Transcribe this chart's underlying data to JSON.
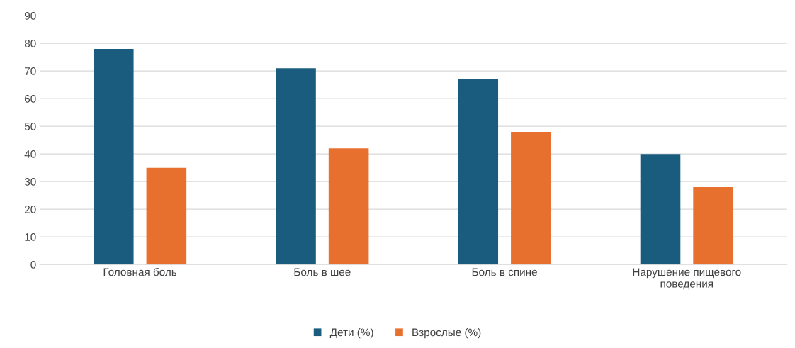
{
  "chart_data": {
    "type": "bar",
    "categories": [
      "Головная боль",
      "Боль в шее",
      "Боль в спине",
      "Нарушение пищевого\nповедения"
    ],
    "series": [
      {
        "name": "Дети (%)",
        "color": "#1a5c7e",
        "values": [
          78,
          71,
          67,
          40
        ]
      },
      {
        "name": "Взрослые (%)",
        "color": "#e8702f",
        "values": [
          35,
          42,
          48,
          28
        ]
      }
    ],
    "ylim": [
      0,
      90
    ],
    "yticks": [
      0,
      10,
      20,
      30,
      40,
      50,
      60,
      70,
      80,
      90
    ],
    "grid": "y",
    "legend": "bottom"
  }
}
